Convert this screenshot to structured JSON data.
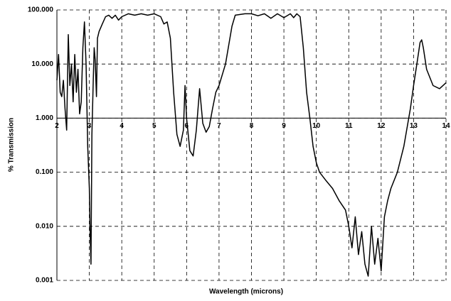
{
  "chart_data": {
    "type": "line",
    "x_label": "Wavelength (microns)",
    "y_label": "% Transmission",
    "log_y": true,
    "grid": true,
    "grid_style": "dashed",
    "x_axis_crosses": 1,
    "color": "#000000",
    "xlim": [
      2,
      14
    ],
    "xticks": [
      2,
      3,
      4,
      5,
      6,
      7,
      8,
      9,
      10,
      11,
      12,
      13,
      14
    ],
    "ylim": [
      0.001,
      100
    ],
    "yticks": [
      {
        "value": 0.001,
        "label": "0.001"
      },
      {
        "value": 0.01,
        "label": "0.010"
      },
      {
        "value": 0.1,
        "label": "0.100"
      },
      {
        "value": 1,
        "label": "1.000"
      },
      {
        "value": 10,
        "label": "10.000"
      },
      {
        "value": 100,
        "label": "100.000"
      }
    ],
    "x": [
      2.0,
      2.05,
      2.1,
      2.15,
      2.2,
      2.25,
      2.3,
      2.35,
      2.4,
      2.45,
      2.5,
      2.55,
      2.6,
      2.65,
      2.7,
      2.75,
      2.8,
      2.85,
      2.9,
      2.95,
      3.0,
      3.02,
      3.05,
      3.08,
      3.12,
      3.15,
      3.18,
      3.22,
      3.25,
      3.3,
      3.4,
      3.5,
      3.6,
      3.7,
      3.8,
      3.9,
      4.0,
      4.2,
      4.4,
      4.6,
      4.8,
      5.0,
      5.2,
      5.3,
      5.4,
      5.5,
      5.6,
      5.7,
      5.8,
      5.9,
      5.95,
      6.0,
      6.1,
      6.2,
      6.3,
      6.4,
      6.5,
      6.6,
      6.7,
      6.8,
      6.9,
      7.0,
      7.2,
      7.4,
      7.5,
      7.8,
      8.0,
      8.2,
      8.4,
      8.6,
      8.8,
      9.0,
      9.2,
      9.3,
      9.4,
      9.5,
      9.6,
      9.7,
      9.8,
      9.9,
      10.0,
      10.1,
      10.3,
      10.5,
      10.7,
      10.9,
      11.0,
      11.1,
      11.2,
      11.3,
      11.4,
      11.5,
      11.6,
      11.7,
      11.8,
      11.9,
      12.0,
      12.1,
      12.2,
      12.3,
      12.5,
      12.7,
      12.9,
      13.0,
      13.1,
      13.2,
      13.25,
      13.3,
      13.4,
      13.6,
      13.8,
      14.0
    ],
    "y": [
      5,
      15,
      3,
      2.5,
      5,
      1.5,
      0.6,
      35,
      4,
      10,
      2,
      15,
      3,
      8,
      1.2,
      2,
      20,
      60,
      10,
      0.3,
      0.05,
      0.01,
      0.002,
      0.5,
      5,
      20,
      12,
      2.5,
      30,
      40,
      55,
      75,
      80,
      70,
      80,
      65,
      75,
      85,
      80,
      85,
      80,
      85,
      75,
      55,
      60,
      30,
      3,
      0.5,
      0.3,
      0.6,
      4,
      1,
      0.25,
      0.2,
      0.6,
      3.5,
      0.8,
      0.55,
      0.7,
      1.5,
      3,
      4,
      10,
      50,
      80,
      85,
      85,
      78,
      85,
      70,
      85,
      72,
      85,
      72,
      85,
      75,
      20,
      3,
      1,
      0.3,
      0.15,
      0.1,
      0.07,
      0.05,
      0.03,
      0.02,
      0.01,
      0.004,
      0.015,
      0.003,
      0.008,
      0.002,
      0.0012,
      0.01,
      0.002,
      0.006,
      0.0015,
      0.015,
      0.03,
      0.05,
      0.1,
      0.3,
      1.5,
      4,
      10,
      25,
      28,
      20,
      8,
      4,
      3.5,
      4.5
    ]
  }
}
